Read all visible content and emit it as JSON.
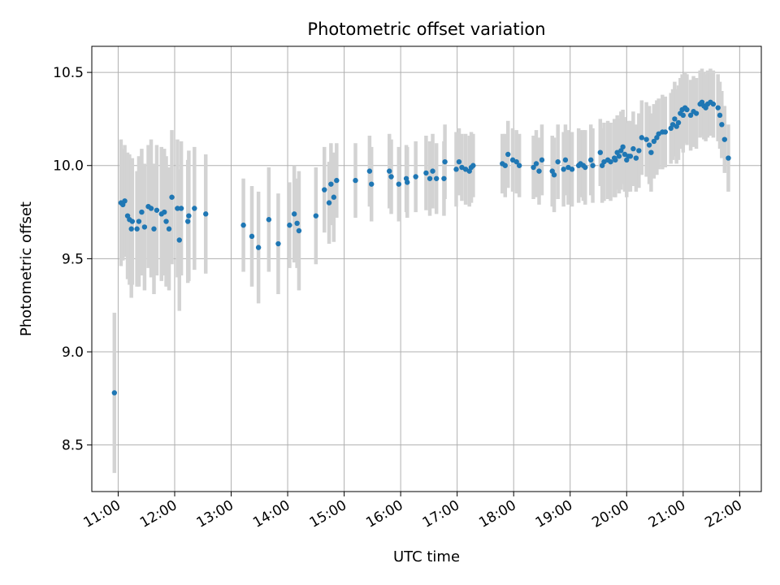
{
  "chart_data": {
    "type": "scatter",
    "title": "Photometric offset variation",
    "xlabel": "UTC time",
    "ylabel": "Photometric offset",
    "xlim": [
      "10:32",
      "22:23"
    ],
    "ylim": [
      8.25,
      10.64
    ],
    "x_ticks": [
      "11:00",
      "12:00",
      "13:00",
      "14:00",
      "15:00",
      "16:00",
      "17:00",
      "18:00",
      "19:00",
      "20:00",
      "21:00",
      "22:00"
    ],
    "y_ticks": [
      "8.5",
      "9.0",
      "9.5",
      "10.0",
      "10.5"
    ],
    "grid": true,
    "colors": {
      "point": "#1f77b4",
      "errorbar": "#d3d3d3",
      "grid": "#b0b0b0"
    },
    "series": [
      {
        "points": [
          [
            "10:56",
            8.78,
            0.43
          ],
          [
            "11:03",
            9.8,
            0.34
          ],
          [
            "11:05",
            9.79,
            0.3
          ],
          [
            "11:07",
            9.81,
            0.3
          ],
          [
            "11:10",
            9.73,
            0.34
          ],
          [
            "11:12",
            9.71,
            0.35
          ],
          [
            "11:14",
            9.66,
            0.37
          ],
          [
            "11:15",
            9.7,
            0.34
          ],
          [
            "11:20",
            9.66,
            0.31
          ],
          [
            "11:22",
            9.7,
            0.35
          ],
          [
            "11:25",
            9.75,
            0.34
          ],
          [
            "11:28",
            9.67,
            0.34
          ],
          [
            "11:32",
            9.78,
            0.33
          ],
          [
            "11:35",
            9.77,
            0.37
          ],
          [
            "11:38",
            9.66,
            0.35
          ],
          [
            "11:41",
            9.76,
            0.35
          ],
          [
            "11:46",
            9.74,
            0.36
          ],
          [
            "11:49",
            9.75,
            0.34
          ],
          [
            "11:51",
            9.7,
            0.35
          ],
          [
            "11:54",
            9.66,
            0.33
          ],
          [
            "11:57",
            9.83,
            0.36
          ],
          [
            "12:03",
            9.77,
            0.37
          ],
          [
            "12:05",
            9.6,
            0.38
          ],
          [
            "12:07",
            9.77,
            0.36
          ],
          [
            "12:14",
            9.7,
            0.33
          ],
          [
            "12:15",
            9.73,
            0.35
          ],
          [
            "12:21",
            9.77,
            0.33
          ],
          [
            "12:33",
            9.74,
            0.32
          ],
          [
            "13:13",
            9.68,
            0.25
          ],
          [
            "13:22",
            9.62,
            0.27
          ],
          [
            "13:29",
            9.56,
            0.3
          ],
          [
            "13:40",
            9.71,
            0.28
          ],
          [
            "13:50",
            9.58,
            0.27
          ],
          [
            "14:02",
            9.68,
            0.23
          ],
          [
            "14:07",
            9.74,
            0.26
          ],
          [
            "14:10",
            9.69,
            0.24
          ],
          [
            "14:12",
            9.65,
            0.32
          ],
          [
            "14:30",
            9.73,
            0.26
          ],
          [
            "14:39",
            9.87,
            0.23
          ],
          [
            "14:44",
            9.8,
            0.22
          ],
          [
            "14:46",
            9.9,
            0.22
          ],
          [
            "14:49",
            9.83,
            0.24
          ],
          [
            "14:52",
            9.92,
            0.2
          ],
          [
            "15:12",
            9.92,
            0.2
          ],
          [
            "15:27",
            9.97,
            0.19
          ],
          [
            "15:29",
            9.9,
            0.2
          ],
          [
            "15:48",
            9.97,
            0.2
          ],
          [
            "15:50",
            9.94,
            0.2
          ],
          [
            "15:58",
            9.9,
            0.2
          ],
          [
            "16:06",
            9.93,
            0.18
          ],
          [
            "16:07",
            9.91,
            0.19
          ],
          [
            "16:16",
            9.94,
            0.19
          ],
          [
            "16:27",
            9.96,
            0.2
          ],
          [
            "16:31",
            9.93,
            0.2
          ],
          [
            "16:34",
            9.97,
            0.2
          ],
          [
            "16:38",
            9.93,
            0.19
          ],
          [
            "16:46",
            9.93,
            0.2
          ],
          [
            "16:47",
            10.02,
            0.2
          ],
          [
            "16:59",
            9.98,
            0.2
          ],
          [
            "17:02",
            10.02,
            0.18
          ],
          [
            "17:05",
            9.99,
            0.18
          ],
          [
            "17:09",
            9.98,
            0.19
          ],
          [
            "17:13",
            9.97,
            0.19
          ],
          [
            "17:15",
            9.99,
            0.19
          ],
          [
            "17:17",
            10.0,
            0.17
          ],
          [
            "17:48",
            10.01,
            0.16
          ],
          [
            "17:51",
            10.0,
            0.17
          ],
          [
            "17:54",
            10.06,
            0.18
          ],
          [
            "17:59",
            10.03,
            0.17
          ],
          [
            "18:03",
            10.02,
            0.17
          ],
          [
            "18:06",
            10.0,
            0.17
          ],
          [
            "18:21",
            9.99,
            0.17
          ],
          [
            "18:24",
            10.01,
            0.18
          ],
          [
            "18:27",
            9.97,
            0.18
          ],
          [
            "18:30",
            10.03,
            0.19
          ],
          [
            "18:41",
            9.97,
            0.19
          ],
          [
            "18:43",
            9.95,
            0.2
          ],
          [
            "18:47",
            10.02,
            0.2
          ],
          [
            "18:53",
            9.98,
            0.2
          ],
          [
            "18:55",
            10.03,
            0.19
          ],
          [
            "18:58",
            9.99,
            0.2
          ],
          [
            "19:02",
            9.98,
            0.2
          ],
          [
            "19:09",
            10.0,
            0.2
          ],
          [
            "19:11",
            10.01,
            0.18
          ],
          [
            "19:14",
            10.0,
            0.19
          ],
          [
            "19:16",
            9.99,
            0.2
          ],
          [
            "19:22",
            10.03,
            0.19
          ],
          [
            "19:24",
            10.0,
            0.2
          ],
          [
            "19:32",
            10.07,
            0.18
          ],
          [
            "19:34",
            10.0,
            0.2
          ],
          [
            "19:36",
            10.02,
            0.21
          ],
          [
            "19:40",
            10.03,
            0.21
          ],
          [
            "19:43",
            10.02,
            0.21
          ],
          [
            "19:47",
            10.04,
            0.21
          ],
          [
            "19:48",
            10.03,
            0.2
          ],
          [
            "19:50",
            10.07,
            0.2
          ],
          [
            "19:52",
            10.05,
            0.2
          ],
          [
            "19:54",
            10.08,
            0.21
          ],
          [
            "19:56",
            10.1,
            0.2
          ],
          [
            "19:58",
            10.06,
            0.2
          ],
          [
            "20:00",
            10.03,
            0.2
          ],
          [
            "20:02",
            10.05,
            0.19
          ],
          [
            "20:04",
            10.05,
            0.19
          ],
          [
            "20:07",
            10.09,
            0.2
          ],
          [
            "20:10",
            10.04,
            0.18
          ],
          [
            "20:13",
            10.08,
            0.2
          ],
          [
            "20:16",
            10.15,
            0.2
          ],
          [
            "20:21",
            10.14,
            0.2
          ],
          [
            "20:24",
            10.11,
            0.21
          ],
          [
            "20:26",
            10.07,
            0.21
          ],
          [
            "20:29",
            10.13,
            0.2
          ],
          [
            "20:32",
            10.15,
            0.2
          ],
          [
            "20:34",
            10.17,
            0.19
          ],
          [
            "20:38",
            10.18,
            0.2
          ],
          [
            "20:41",
            10.18,
            0.19
          ],
          [
            "20:47",
            10.2,
            0.19
          ],
          [
            "20:49",
            10.22,
            0.19
          ],
          [
            "20:51",
            10.25,
            0.2
          ],
          [
            "20:53",
            10.21,
            0.2
          ],
          [
            "20:55",
            10.23,
            0.2
          ],
          [
            "20:57",
            10.28,
            0.19
          ],
          [
            "20:59",
            10.3,
            0.19
          ],
          [
            "21:00",
            10.27,
            0.2
          ],
          [
            "21:02",
            10.31,
            0.19
          ],
          [
            "21:04",
            10.3,
            0.19
          ],
          [
            "21:08",
            10.27,
            0.19
          ],
          [
            "21:11",
            10.29,
            0.19
          ],
          [
            "21:14",
            10.28,
            0.19
          ],
          [
            "21:18",
            10.33,
            0.18
          ],
          [
            "21:20",
            10.34,
            0.18
          ],
          [
            "21:22",
            10.32,
            0.18
          ],
          [
            "21:24",
            10.31,
            0.18
          ],
          [
            "21:26",
            10.33,
            0.18
          ],
          [
            "21:29",
            10.34,
            0.18
          ],
          [
            "21:32",
            10.33,
            0.18
          ],
          [
            "21:37",
            10.31,
            0.18
          ],
          [
            "21:39",
            10.27,
            0.18
          ],
          [
            "21:41",
            10.22,
            0.18
          ],
          [
            "21:44",
            10.14,
            0.18
          ],
          [
            "21:48",
            10.04,
            0.18
          ]
        ]
      }
    ]
  }
}
